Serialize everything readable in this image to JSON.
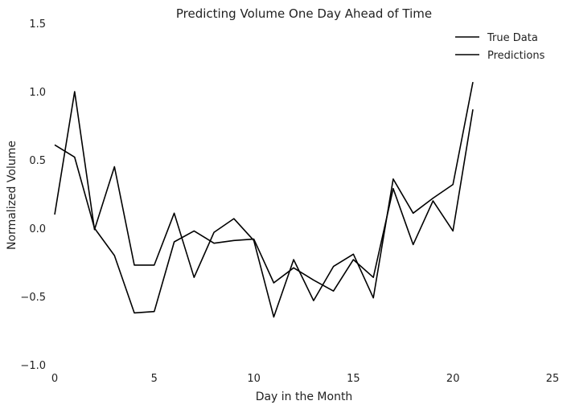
{
  "chart_data": {
    "type": "line",
    "title": "Predicting Volume One Day Ahead of Time",
    "xlabel": "Day in the Month",
    "ylabel": "Normalized Volume",
    "xlim": [
      0,
      25
    ],
    "ylim": [
      -1.0,
      1.5
    ],
    "xticks": [
      0,
      5,
      10,
      15,
      20,
      25
    ],
    "xtick_labels": [
      "0",
      "5",
      "10",
      "15",
      "20",
      "25"
    ],
    "yticks": [
      -1.0,
      -0.5,
      0.0,
      0.5,
      1.0,
      1.5
    ],
    "ytick_labels": [
      "−1.0",
      "−0.5",
      "0.0",
      "0.5",
      "1.0",
      "1.5"
    ],
    "grid": false,
    "legend_position": "top-right",
    "series": [
      {
        "name": "True Data",
        "color": "#000000",
        "x": [
          0,
          1,
          2,
          3,
          4,
          5,
          6,
          7,
          8,
          9,
          10,
          11,
          12,
          13,
          14,
          15,
          16,
          17,
          18,
          19,
          20,
          21
        ],
        "values": [
          0.1,
          1.0,
          -0.01,
          0.45,
          -0.27,
          -0.27,
          0.11,
          -0.36,
          -0.03,
          0.07,
          -0.09,
          -0.65,
          -0.23,
          -0.53,
          -0.28,
          -0.19,
          -0.51,
          0.36,
          0.11,
          0.22,
          0.32,
          1.07
        ]
      },
      {
        "name": "Predictions",
        "color": "#000000",
        "x": [
          0,
          1,
          2,
          3,
          4,
          5,
          6,
          7,
          8,
          9,
          10,
          11,
          12,
          13,
          14,
          15,
          16,
          17,
          18,
          19,
          20,
          21
        ],
        "values": [
          0.61,
          0.52,
          0.0,
          -0.2,
          -0.62,
          -0.61,
          -0.1,
          -0.02,
          -0.11,
          -0.09,
          -0.08,
          -0.4,
          -0.29,
          -0.38,
          -0.46,
          -0.23,
          -0.36,
          0.29,
          -0.12,
          0.2,
          -0.02,
          0.87
        ]
      }
    ]
  }
}
